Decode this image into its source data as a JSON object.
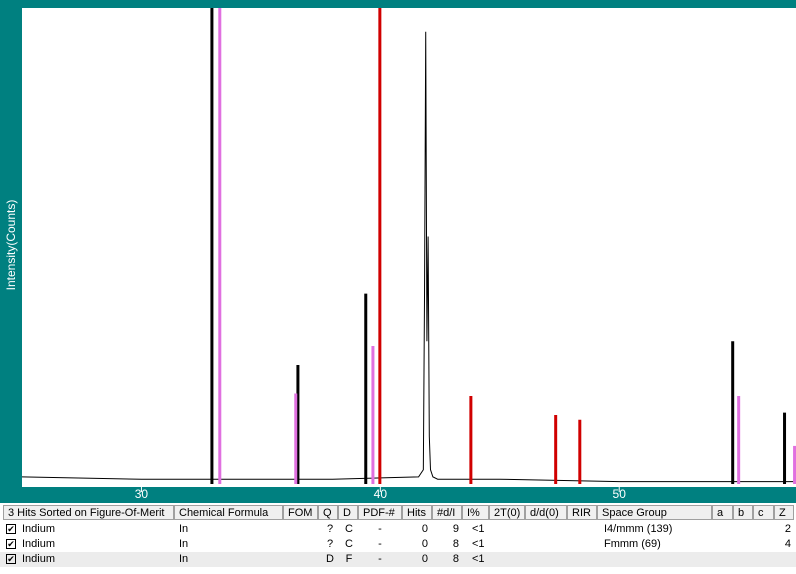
{
  "chart_data": {
    "type": "xrd",
    "y_label": "Intensity(Counts)",
    "xlim": [
      25,
      57.4
    ],
    "ylim": [
      0,
      100
    ],
    "xticks": [
      30,
      40,
      50
    ],
    "series": [
      {
        "style": "line",
        "color": "#000000",
        "x": [
          25,
          30,
          35,
          38,
          41.6,
          41.8,
          41.85,
          41.9,
          41.95,
          42.0,
          42.05,
          42.1,
          42.2,
          42.4,
          45,
          50,
          55,
          57.4
        ],
        "values": [
          1.5,
          1,
          1,
          1,
          1.5,
          3,
          40,
          95,
          30,
          52,
          10,
          3,
          1.5,
          1,
          1,
          0.5,
          0.5,
          0.5
        ]
      },
      {
        "style": "stick",
        "color": "#000000",
        "x": [
          32.95,
          36.55,
          39.39,
          54.75,
          56.92
        ],
        "values": [
          100,
          25,
          40,
          30,
          15
        ]
      },
      {
        "style": "stick",
        "color": "#e070e0",
        "x": [
          33.28,
          36.46,
          39.69,
          55.0,
          57.34
        ],
        "values": [
          100,
          19,
          29,
          18.5,
          8
        ]
      },
      {
        "style": "stick",
        "color": "#d00000",
        "x": [
          39.98,
          43.79,
          47.34,
          48.35
        ],
        "values": [
          100,
          18.5,
          14.5,
          13.5
        ]
      }
    ]
  },
  "table": {
    "columns": [
      "3 Hits Sorted on Figure-Of-Merit",
      "Chemical Formula",
      "FOM",
      "Q",
      "D",
      "PDF-#",
      "Hits",
      "#d/I",
      "I%",
      "2T(0)",
      "d/d(0)",
      "RIR",
      "Space Group",
      "a",
      "b",
      "c",
      "Z"
    ],
    "rows": [
      {
        "name": "Indium",
        "formula": "In",
        "q": "?",
        "d": "C",
        "pdf": "-",
        "hits": 0,
        "di": 9,
        "ipct": "<1",
        "space_group": "I4/mmm (139)",
        "z": 2
      },
      {
        "name": "Indium",
        "formula": "In",
        "q": "?",
        "d": "C",
        "pdf": "-",
        "hits": 0,
        "di": 8,
        "ipct": "<1",
        "space_group": "Fmmm (69)",
        "z": 4
      },
      {
        "name": "Indium",
        "formula": "In",
        "q": "D",
        "d": "F",
        "pdf": "-",
        "hits": 0,
        "di": 8,
        "ipct": "<1"
      }
    ]
  }
}
